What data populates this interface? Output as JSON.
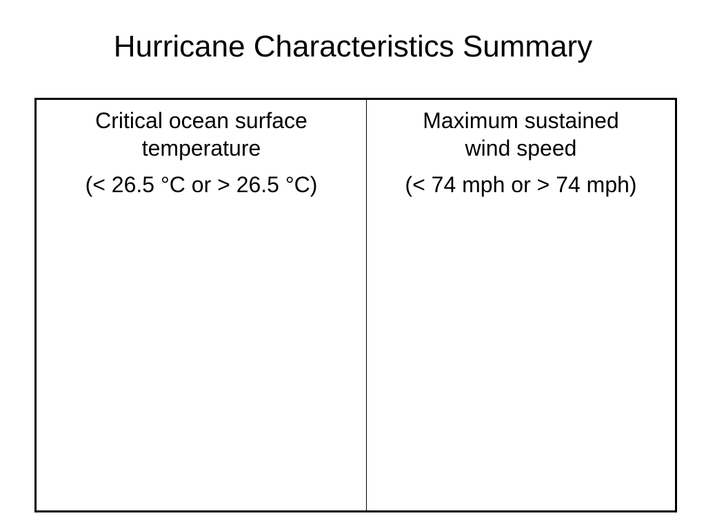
{
  "title": "Hurricane Characteristics Summary",
  "table": {
    "columns": [
      {
        "heading_line1": "Critical ocean surface",
        "heading_line2": "temperature",
        "range": "(< 26.5 °C or > 26.5 °C)"
      },
      {
        "heading_line1": "Maximum sustained",
        "heading_line2": "wind speed",
        "range": "(< 74 mph or > 74 mph)"
      }
    ]
  }
}
